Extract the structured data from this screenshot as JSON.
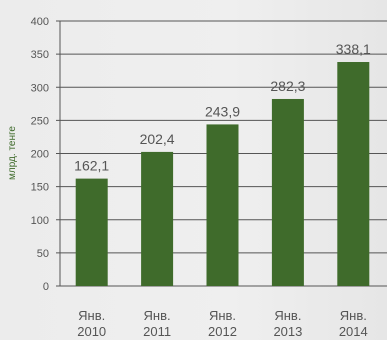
{
  "chart_data": {
    "type": "bar",
    "categories": [
      [
        "Янв.",
        "2010"
      ],
      [
        "Янв.",
        "2011"
      ],
      [
        "Янв.",
        "2012"
      ],
      [
        "Янв.",
        "2013"
      ],
      [
        "Янв.",
        "2014"
      ]
    ],
    "values": [
      162.1,
      202.4,
      243.9,
      282.3,
      338.1
    ],
    "data_labels": [
      "162,1",
      "202,4",
      "243,9",
      "282,3",
      "338,1"
    ],
    "ylabel": "млрд. тенге",
    "ylim": [
      0,
      400
    ],
    "yticks": [
      0,
      50,
      100,
      150,
      200,
      250,
      300,
      350,
      400
    ],
    "grid": true,
    "bar_color": "#3f6b2b",
    "grid_color": "#555555"
  }
}
